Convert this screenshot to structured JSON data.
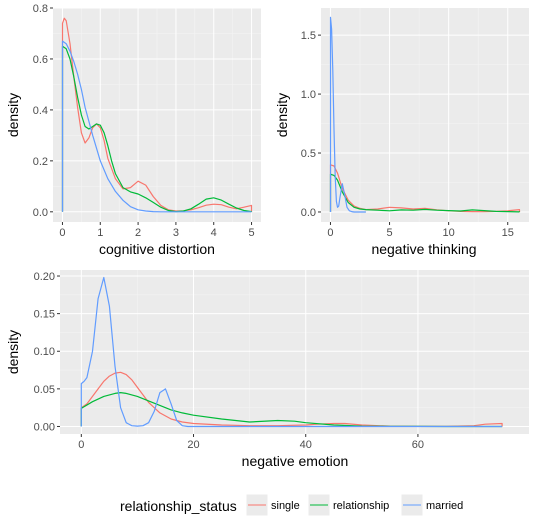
{
  "chart_data": [
    {
      "type": "line",
      "subtype": "density",
      "xlabel": "cognitive distortion",
      "ylabel": "density",
      "xlim": [
        -0.25,
        5.25
      ],
      "ylim": [
        -0.04,
        0.8
      ],
      "xticks": [
        0,
        1,
        2,
        3,
        4,
        5
      ],
      "yticks": [
        0.0,
        0.2,
        0.4,
        0.6,
        0.8
      ],
      "ytick_labels": [
        "0.0",
        "0.2",
        "0.4",
        "0.6",
        "0.8"
      ],
      "grid": true,
      "series": [
        {
          "name": "single",
          "color": "#F8766D",
          "x": [
            0,
            0.05,
            0.1,
            0.2,
            0.3,
            0.4,
            0.5,
            0.6,
            0.7,
            0.8,
            0.9,
            1.0,
            1.1,
            1.2,
            1.4,
            1.6,
            1.8,
            2.0,
            2.2,
            2.4,
            2.6,
            2.8,
            3.0,
            3.2,
            3.4,
            3.6,
            3.8,
            4.0,
            4.2,
            4.4,
            4.6,
            4.8,
            5.0
          ],
          "y": [
            0.74,
            0.76,
            0.75,
            0.66,
            0.53,
            0.41,
            0.31,
            0.27,
            0.29,
            0.33,
            0.345,
            0.33,
            0.28,
            0.21,
            0.13,
            0.09,
            0.095,
            0.12,
            0.105,
            0.06,
            0.025,
            0.008,
            0.003,
            0.004,
            0.008,
            0.016,
            0.026,
            0.03,
            0.028,
            0.018,
            0.012,
            0.018,
            0.025
          ]
        },
        {
          "name": "relationship",
          "color": "#00BA38",
          "x": [
            0,
            0.1,
            0.2,
            0.3,
            0.4,
            0.5,
            0.6,
            0.7,
            0.8,
            0.9,
            1.0,
            1.1,
            1.2,
            1.3,
            1.4,
            1.6,
            1.8,
            2.0,
            2.2,
            2.4,
            2.6,
            2.8,
            3.0,
            3.2,
            3.4,
            3.6,
            3.8,
            4.0,
            4.2,
            4.4,
            4.6,
            4.8,
            5.0
          ],
          "y": [
            0.65,
            0.64,
            0.6,
            0.53,
            0.45,
            0.38,
            0.335,
            0.325,
            0.335,
            0.345,
            0.34,
            0.31,
            0.26,
            0.2,
            0.15,
            0.095,
            0.078,
            0.07,
            0.055,
            0.037,
            0.018,
            0.005,
            0.001,
            0.003,
            0.012,
            0.03,
            0.05,
            0.055,
            0.046,
            0.03,
            0.015,
            0.005,
            0.001
          ]
        },
        {
          "name": "married",
          "color": "#619CFF",
          "x": [
            0,
            0.1,
            0.2,
            0.3,
            0.4,
            0.5,
            0.6,
            0.8,
            1.0,
            1.2,
            1.4,
            1.6,
            1.8,
            2.0,
            2.2,
            2.4,
            2.6,
            3.0,
            4.0,
            5.0
          ],
          "y": [
            0.67,
            0.66,
            0.63,
            0.59,
            0.54,
            0.48,
            0.41,
            0.3,
            0.2,
            0.13,
            0.08,
            0.045,
            0.02,
            0.008,
            0.003,
            0.001,
            0.0,
            0.0,
            0.0,
            0.0
          ]
        }
      ]
    },
    {
      "type": "line",
      "subtype": "density",
      "xlabel": "negative thinking",
      "ylabel": "density",
      "xlim": [
        -0.8,
        16.8
      ],
      "ylim": [
        -0.085,
        1.73
      ],
      "xticks": [
        0,
        5,
        10,
        15
      ],
      "yticks": [
        0.0,
        0.5,
        1.0,
        1.5
      ],
      "ytick_labels": [
        "0.0",
        "0.5",
        "1.0",
        "1.5"
      ],
      "grid": true,
      "series": [
        {
          "name": "single",
          "color": "#F8766D",
          "x": [
            0,
            0.3,
            0.6,
            1.0,
            1.5,
            2.0,
            2.5,
            3.0,
            4.0,
            5.0,
            6.0,
            7.0,
            8.0,
            9.0,
            10.0,
            11.0,
            12.0,
            13.0,
            14.0,
            15.0,
            16.0
          ],
          "y": [
            0.4,
            0.39,
            0.33,
            0.2,
            0.1,
            0.05,
            0.03,
            0.02,
            0.025,
            0.04,
            0.035,
            0.025,
            0.03,
            0.018,
            0.01,
            0.005,
            0.003,
            0.002,
            0.005,
            0.01,
            0.02
          ]
        },
        {
          "name": "relationship",
          "color": "#00BA38",
          "x": [
            0,
            0.3,
            0.6,
            1.0,
            1.5,
            2.0,
            2.5,
            3.0,
            4.0,
            5.0,
            6.0,
            7.0,
            8.0,
            9.0,
            10.0,
            11.0,
            12.0,
            13.0,
            14.0,
            15.0,
            16.0
          ],
          "y": [
            0.32,
            0.31,
            0.27,
            0.17,
            0.08,
            0.04,
            0.025,
            0.02,
            0.015,
            0.01,
            0.018,
            0.015,
            0.022,
            0.015,
            0.012,
            0.008,
            0.018,
            0.012,
            0.005,
            0.003,
            0.001
          ]
        },
        {
          "name": "married",
          "color": "#619CFF",
          "x": [
            0,
            0.1,
            0.2,
            0.3,
            0.4,
            0.5,
            0.6,
            0.7,
            0.8,
            1.0,
            1.2,
            1.4,
            1.6,
            1.8,
            2.0,
            3.0
          ],
          "y": [
            1.65,
            1.55,
            1.2,
            0.7,
            0.3,
            0.09,
            0.04,
            0.05,
            0.12,
            0.24,
            0.15,
            0.04,
            0.01,
            0.003,
            0.0,
            0.0
          ]
        }
      ]
    },
    {
      "type": "line",
      "subtype": "density",
      "xlabel": "negative emotion",
      "ylabel": "density",
      "xlim": [
        -3.8,
        79.8
      ],
      "ylim": [
        -0.01,
        0.208
      ],
      "xticks": [
        0,
        20,
        40,
        60
      ],
      "yticks": [
        0.0,
        0.05,
        0.1,
        0.15,
        0.2
      ],
      "ytick_labels": [
        "0.00",
        "0.05",
        "0.10",
        "0.15",
        "0.20"
      ],
      "grid": true,
      "series": [
        {
          "name": "single",
          "color": "#F8766D",
          "x": [
            0,
            1,
            2,
            3,
            4,
            5,
            6,
            7,
            8,
            9,
            10,
            11,
            12,
            14,
            16,
            18,
            20,
            25,
            30,
            35,
            40,
            42,
            45,
            47,
            50,
            55,
            60,
            65,
            70,
            72,
            75
          ],
          "y": [
            0.025,
            0.03,
            0.04,
            0.05,
            0.06,
            0.067,
            0.071,
            0.072,
            0.069,
            0.062,
            0.052,
            0.042,
            0.032,
            0.018,
            0.01,
            0.006,
            0.004,
            0.002,
            0.001,
            0.001,
            0.002,
            0.003,
            0.004,
            0.004,
            0.002,
            0.0005,
            0.0002,
            0.0002,
            0.001,
            0.003,
            0.004
          ]
        },
        {
          "name": "relationship",
          "color": "#00BA38",
          "x": [
            0,
            2,
            4,
            6,
            7,
            8,
            10,
            12,
            14,
            16,
            18,
            20,
            25,
            30,
            35,
            38,
            40,
            45,
            50,
            55,
            60,
            65,
            70,
            75
          ],
          "y": [
            0.024,
            0.033,
            0.04,
            0.044,
            0.045,
            0.044,
            0.04,
            0.034,
            0.028,
            0.022,
            0.018,
            0.015,
            0.01,
            0.006,
            0.008,
            0.007,
            0.005,
            0.002,
            0.0005,
            0.0002,
            0.0001,
            0.0,
            0.0,
            0.0
          ]
        },
        {
          "name": "married",
          "color": "#619CFF",
          "x": [
            0,
            0.5,
            1,
            2,
            3,
            4,
            5,
            6,
            7,
            8,
            9,
            10,
            11,
            12,
            13,
            14,
            15,
            16,
            17,
            18,
            19,
            20,
            30,
            40,
            75
          ],
          "y": [
            0.057,
            0.06,
            0.065,
            0.1,
            0.17,
            0.198,
            0.16,
            0.08,
            0.025,
            0.005,
            0.001,
            0.0005,
            0.001,
            0.005,
            0.02,
            0.045,
            0.05,
            0.03,
            0.008,
            0.001,
            0.0,
            0.0,
            0.0,
            0.0,
            0.0
          ]
        }
      ]
    }
  ],
  "legend": {
    "title": "relationship_status",
    "placement": "bottom",
    "items": [
      {
        "label": "single",
        "color": "#F8766D"
      },
      {
        "label": "relationship",
        "color": "#00BA38"
      },
      {
        "label": "married",
        "color": "#619CFF"
      }
    ]
  },
  "theme": {
    "panel_bg": "#EBEBEB",
    "grid_major": "#FFFFFF"
  }
}
